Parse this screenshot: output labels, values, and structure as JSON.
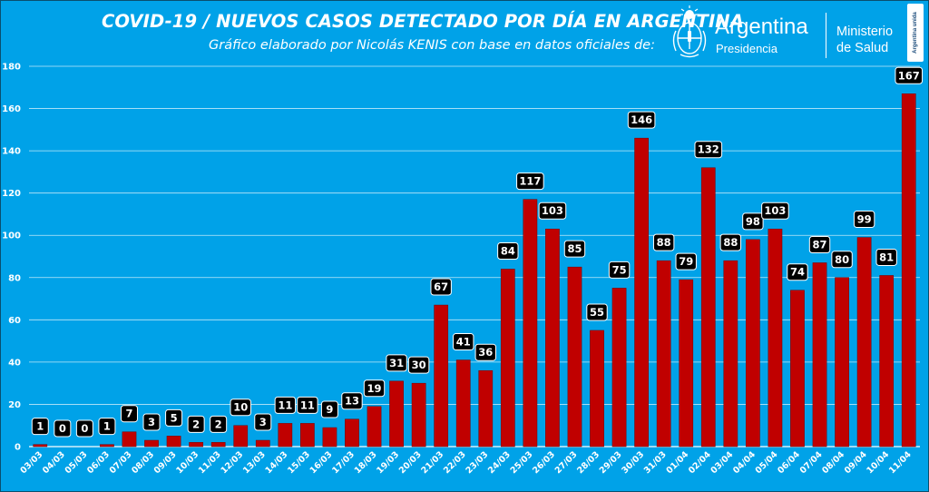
{
  "header": {
    "title": "COVID-19  /  NUEVOS CASOS DETECTADO POR DÍA EN ARGENTINA",
    "subtitle": "Gráfico elaborado por Nicolás KENIS con base en datos oficiales de:"
  },
  "logos": {
    "country": "Argentina",
    "country_sub": "Presidencia",
    "ministry_line1": "Ministerio",
    "ministry_line2": "de Salud",
    "badge": "Argentina unida",
    "emblem": "argentina-coat-of-arms-icon"
  },
  "colors": {
    "background": "#00a2e8",
    "bar": "#c00000",
    "grid": "#ffffff",
    "label_box": "#000000",
    "label_text": "#ffffff"
  },
  "chart_data": {
    "type": "bar",
    "title": "COVID-19  /  NUEVOS CASOS DETECTADO POR DÍA EN ARGENTINA",
    "xlabel": "",
    "ylabel": "",
    "ylim": [
      0,
      180
    ],
    "yticks": [
      0,
      20,
      40,
      60,
      80,
      100,
      120,
      140,
      160,
      180
    ],
    "grid": true,
    "legend": "none",
    "categories": [
      "03/03",
      "04/03",
      "05/03",
      "06/03",
      "07/03",
      "08/03",
      "09/03",
      "10/03",
      "11/03",
      "12/03",
      "13/03",
      "14/03",
      "15/03",
      "16/03",
      "17/03",
      "18/03",
      "19/03",
      "20/03",
      "21/03",
      "22/03",
      "23/03",
      "24/03",
      "25/03",
      "26/03",
      "27/03",
      "28/03",
      "29/03",
      "30/03",
      "31/03",
      "01/04",
      "02/04",
      "03/04",
      "04/04",
      "05/04",
      "06/04",
      "07/04",
      "08/04",
      "09/04",
      "10/04",
      "11/04"
    ],
    "values": [
      1,
      0,
      0,
      1,
      7,
      3,
      5,
      2,
      2,
      10,
      3,
      11,
      11,
      9,
      13,
      19,
      31,
      30,
      67,
      41,
      36,
      84,
      117,
      103,
      85,
      55,
      75,
      146,
      88,
      79,
      132,
      88,
      98,
      103,
      74,
      87,
      80,
      99,
      81,
      167
    ]
  }
}
